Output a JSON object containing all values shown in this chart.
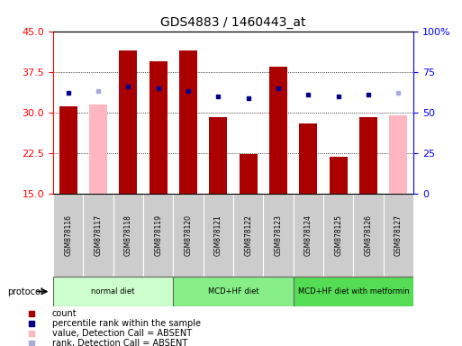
{
  "title": "GDS4883 / 1460443_at",
  "samples": [
    "GSM878116",
    "GSM878117",
    "GSM878118",
    "GSM878119",
    "GSM878120",
    "GSM878121",
    "GSM878122",
    "GSM878123",
    "GSM878124",
    "GSM878125",
    "GSM878126",
    "GSM878127"
  ],
  "count_values": [
    31.2,
    null,
    41.5,
    39.5,
    41.5,
    29.2,
    22.3,
    38.5,
    28.0,
    21.8,
    29.2,
    null
  ],
  "count_absent": [
    null,
    31.5,
    null,
    null,
    null,
    null,
    null,
    null,
    null,
    null,
    null,
    29.5
  ],
  "percentile_values": [
    62,
    null,
    66,
    65,
    63,
    60,
    59,
    65,
    61,
    60,
    61,
    null
  ],
  "percentile_absent": [
    null,
    63,
    null,
    null,
    null,
    null,
    null,
    null,
    null,
    null,
    null,
    62
  ],
  "ylim_left": [
    15,
    45
  ],
  "ylim_right": [
    0,
    100
  ],
  "yticks_left": [
    15,
    22.5,
    30,
    37.5,
    45
  ],
  "yticks_right": [
    0,
    25,
    50,
    75,
    100
  ],
  "bar_color_present": "#AA0000",
  "bar_color_absent": "#FFB6C1",
  "dot_color_present": "#00008B",
  "dot_color_absent": "#AAAADD",
  "label_bg": "#CCCCCC",
  "protocol_groups": [
    {
      "label": "normal diet",
      "start": 0,
      "end": 3,
      "color": "#CCFFCC"
    },
    {
      "label": "MCD+HF diet",
      "start": 4,
      "end": 7,
      "color": "#88EE88"
    },
    {
      "label": "MCD+HF diet with metformin",
      "start": 8,
      "end": 11,
      "color": "#55DD55"
    }
  ],
  "legend_items": [
    {
      "color": "#AA0000",
      "label": "count"
    },
    {
      "color": "#00008B",
      "label": "percentile rank within the sample"
    },
    {
      "color": "#FFB6C1",
      "label": "value, Detection Call = ABSENT"
    },
    {
      "color": "#AAAADD",
      "label": "rank, Detection Call = ABSENT"
    }
  ],
  "figsize": [
    5.13,
    3.84
  ],
  "dpi": 100
}
